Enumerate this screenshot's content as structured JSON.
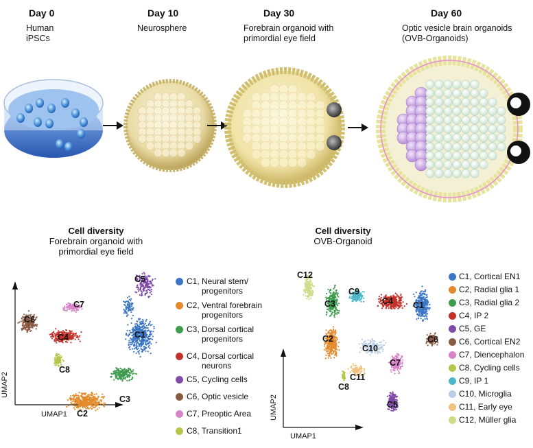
{
  "timeline": [
    {
      "day": "Day 0",
      "desc": [
        "Human",
        "iPSCs"
      ]
    },
    {
      "day": "Day 10",
      "desc": [
        "Neurosphere"
      ]
    },
    {
      "day": "Day 30",
      "desc": [
        "Forebrain organoid with",
        "primordial eye field"
      ]
    },
    {
      "day": "Day 60",
      "desc": [
        "Optic vesicle brain organoids",
        "(OVB-Organoids)"
      ]
    }
  ],
  "left_panel": {
    "title": "Cell diversity",
    "subtitle": [
      "Forebrain organoid with",
      "primordial eye field"
    ],
    "xlabel": "UMAP1",
    "ylabel": "UMAP2",
    "clusters": [
      {
        "label": "C1",
        "color": "#3b75c4"
      },
      {
        "label": "C2",
        "color": "#e38a2b"
      },
      {
        "label": "C3",
        "color": "#3f9b4e"
      },
      {
        "label": "C4",
        "color": "#c3302a"
      },
      {
        "label": "C5",
        "color": "#7f4aa8"
      },
      {
        "label": "C6",
        "color": "#8a5a42"
      },
      {
        "label": "C7",
        "color": "#d785c9"
      },
      {
        "label": "C8",
        "color": "#b7c64a"
      }
    ],
    "legend": [
      {
        "text": [
          "C1, Neural stem/",
          "progenitors"
        ],
        "color": "#3b75c4"
      },
      {
        "text": [
          "C2, Ventral forebrain",
          "progenitors"
        ],
        "color": "#e38a2b"
      },
      {
        "text": [
          "C3, Dorsal cortical",
          "progenitors"
        ],
        "color": "#3f9b4e"
      },
      {
        "text": [
          "C4, Dorsal cortical",
          "neurons"
        ],
        "color": "#c3302a"
      },
      {
        "text": [
          "C5, Cycling cells"
        ],
        "color": "#7f4aa8"
      },
      {
        "text": [
          "C6, Optic vesicle"
        ],
        "color": "#8a5a42"
      },
      {
        "text": [
          "C7, Preoptic Area"
        ],
        "color": "#d785c9"
      },
      {
        "text": [
          "C8, Transition1"
        ],
        "color": "#b7c64a"
      }
    ]
  },
  "right_panel": {
    "title": "Cell diversity",
    "subtitle": [
      "OVB-Organoid"
    ],
    "xlabel": "UMAP1",
    "ylabel": "UMAP2",
    "clusters": [
      {
        "label": "C1",
        "color": "#3b75c4"
      },
      {
        "label": "C2",
        "color": "#e38a2b"
      },
      {
        "label": "C3",
        "color": "#3f9b4e"
      },
      {
        "label": "C4",
        "color": "#c3302a"
      },
      {
        "label": "C5",
        "color": "#7f4aa8"
      },
      {
        "label": "C6",
        "color": "#8a5a42"
      },
      {
        "label": "C7",
        "color": "#d785c9"
      },
      {
        "label": "C8",
        "color": "#b7c64a"
      },
      {
        "label": "C9",
        "color": "#4bb8c9"
      },
      {
        "label": "C10",
        "color": "#b9cde6"
      },
      {
        "label": "C11",
        "color": "#f1c27d"
      },
      {
        "label": "C12",
        "color": "#cfdc8a"
      }
    ],
    "legend": [
      {
        "text": "C1, Cortical EN1",
        "color": "#3b75c4"
      },
      {
        "text": "C2, Radial glia 1",
        "color": "#e38a2b"
      },
      {
        "text": "C3, Radial glia 2",
        "color": "#3f9b4e"
      },
      {
        "text": "C4, IP 2",
        "color": "#c3302a"
      },
      {
        "text": "C5, GE",
        "color": "#7f4aa8"
      },
      {
        "text": "C6, Cortical EN2",
        "color": "#8a5a42"
      },
      {
        "text": "C7, Diencephalon",
        "color": "#d785c9"
      },
      {
        "text": "C8, Cycling cells",
        "color": "#b7c64a"
      },
      {
        "text": "C9, IP 1",
        "color": "#4bb8c9"
      },
      {
        "text": "C10, Microglia",
        "color": "#b9cde6"
      },
      {
        "text": "C11, Early eye",
        "color": "#f1c27d"
      },
      {
        "text": "C12, Müller glia",
        "color": "#cfdc8a"
      }
    ]
  }
}
